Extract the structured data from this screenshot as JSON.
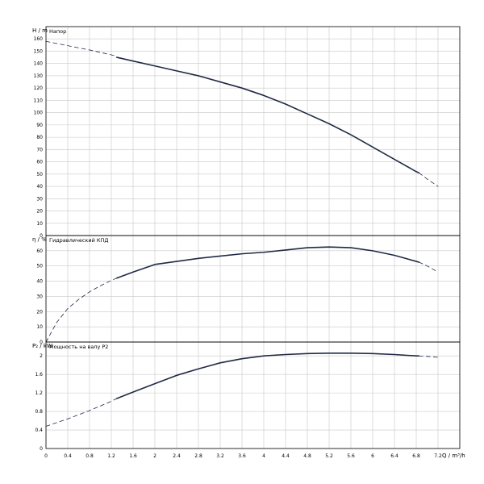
{
  "chart_data": {
    "type": "line",
    "x_label": "Q / m³/h",
    "x_ticks": [
      "0",
      "0.4",
      "0.8",
      "1.2",
      "1.6",
      "2",
      "2.4",
      "2.8",
      "3.2",
      "3.6",
      "4",
      "4.4",
      "4.8",
      "5.2",
      "5.6",
      "6",
      "6.4",
      "6.8",
      "7.2"
    ],
    "xlim": [
      0,
      7.6
    ],
    "panels": [
      {
        "id": "head",
        "title": "Напор",
        "y_label": "H / m",
        "ylim": [
          0,
          170
        ],
        "y_ticks": [
          "0",
          "10",
          "20",
          "30",
          "40",
          "50",
          "60",
          "70",
          "80",
          "90",
          "100",
          "110",
          "120",
          "130",
          "140",
          "150",
          "160"
        ],
        "tick_values": [
          0,
          10,
          20,
          30,
          40,
          50,
          60,
          70,
          80,
          90,
          100,
          110,
          120,
          130,
          140,
          150,
          160
        ],
        "series": [
          {
            "style": "dashed",
            "x": [
              0,
              0.4,
              0.8,
              1.2,
              1.3
            ],
            "y": [
              158,
              154.5,
              151,
              147,
              146
            ]
          },
          {
            "style": "solid",
            "x": [
              1.3,
              1.6,
              2.0,
              2.4,
              2.8,
              3.2,
              3.6,
              4.0,
              4.4,
              4.8,
              5.2,
              5.6,
              6.0,
              6.4,
              6.8,
              6.85
            ],
            "y": [
              145,
              142,
              138,
              134,
              130,
              125,
              120,
              114,
              107,
              99,
              91,
              82,
              72,
              62,
              52,
              51
            ]
          },
          {
            "style": "dashed",
            "x": [
              6.85,
              7.0,
              7.2
            ],
            "y": [
              51,
              46,
              40
            ]
          }
        ]
      },
      {
        "id": "efficiency",
        "title": "Гидравлический КПД",
        "y_label": "η / %",
        "ylim": [
          0,
          70
        ],
        "y_ticks": [
          "0",
          "10",
          "20",
          "30",
          "40",
          "50",
          "60"
        ],
        "tick_values": [
          0,
          10,
          20,
          30,
          40,
          50,
          60
        ],
        "series": [
          {
            "style": "dashed",
            "x": [
              0,
              0.2,
              0.4,
              0.6,
              0.8,
              1.0,
              1.2,
              1.3
            ],
            "y": [
              0,
              13,
              22,
              28,
              33,
              37,
              40.5,
              42
            ]
          },
          {
            "style": "solid",
            "x": [
              1.3,
              1.6,
              2.0,
              2.4,
              2.8,
              3.2,
              3.6,
              4.0,
              4.4,
              4.8,
              5.2,
              5.6,
              6.0,
              6.4,
              6.8,
              6.85
            ],
            "y": [
              42,
              46,
              51,
              53,
              55,
              56.5,
              58,
              59,
              60.5,
              62,
              62.5,
              62,
              60,
              57,
              53,
              52.5
            ]
          },
          {
            "style": "dashed",
            "x": [
              6.85,
              7.0,
              7.2
            ],
            "y": [
              52.5,
              50,
              46
            ]
          }
        ]
      },
      {
        "id": "power",
        "title": "Мощность на валу P2",
        "y_label": "P₂ / kW",
        "ylim": [
          0,
          2.3
        ],
        "y_ticks": [
          "0",
          "0.4",
          "0.8",
          "1.2",
          "1.6",
          "2"
        ],
        "tick_values": [
          0,
          0.4,
          0.8,
          1.2,
          1.6,
          2
        ],
        "series": [
          {
            "style": "dashed",
            "x": [
              0,
              0.4,
              0.8,
              1.2,
              1.3
            ],
            "y": [
              0.48,
              0.64,
              0.82,
              1.02,
              1.08
            ]
          },
          {
            "style": "solid",
            "x": [
              1.3,
              1.6,
              2.0,
              2.4,
              2.8,
              3.2,
              3.6,
              4.0,
              4.4,
              4.8,
              5.2,
              5.6,
              6.0,
              6.4,
              6.8,
              6.85
            ],
            "y": [
              1.08,
              1.22,
              1.4,
              1.58,
              1.72,
              1.85,
              1.94,
              2.0,
              2.03,
              2.05,
              2.06,
              2.06,
              2.05,
              2.03,
              2.0,
              2.0
            ]
          },
          {
            "style": "dashed",
            "x": [
              6.85,
              7.0,
              7.2
            ],
            "y": [
              2.0,
              1.99,
              1.97
            ]
          }
        ]
      }
    ]
  }
}
